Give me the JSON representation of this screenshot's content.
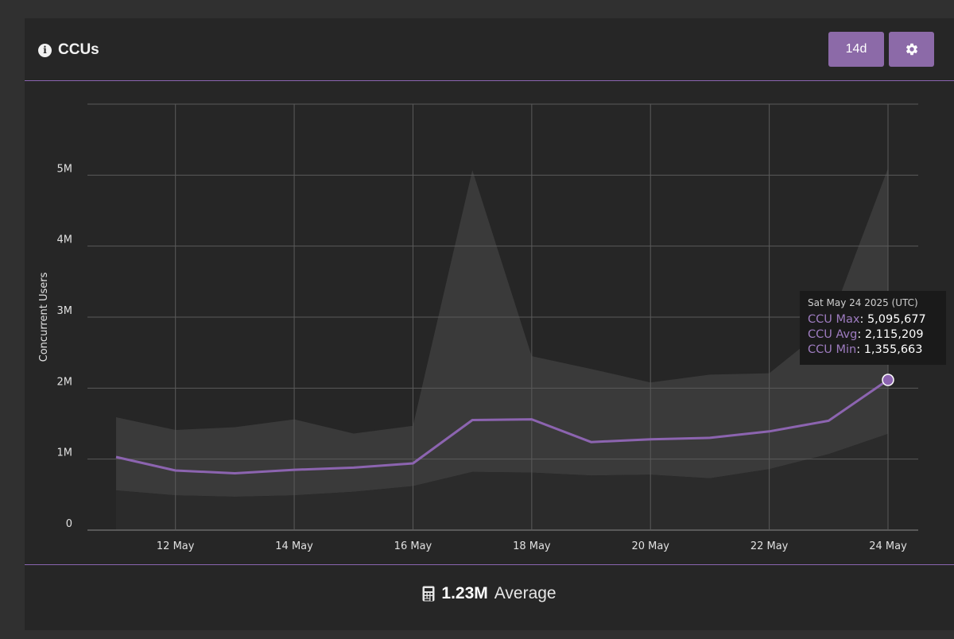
{
  "card": {
    "title": "CCUs",
    "range_button": "14d",
    "summary": {
      "value": "1.23M",
      "label": "Average"
    }
  },
  "colors": {
    "accent": "#8c6aa8",
    "line": "#8c64b0",
    "band": "#3a3a3a",
    "grid": "#5a5a5a",
    "background": "#262626"
  },
  "icons": {
    "title": "info-icon",
    "settings": "gear-icon",
    "summary": "calculator-icon"
  },
  "tooltip": {
    "date": "Sat May 24 2025 (UTC)",
    "rows": [
      {
        "label": "CCU Max",
        "value": "5,095,677"
      },
      {
        "label": "CCU Avg",
        "value": "2,115,209"
      },
      {
        "label": "CCU Min",
        "value": "1,355,663"
      }
    ]
  },
  "chart_data": {
    "type": "area",
    "ylabel": "Concurrent Users",
    "ylim": [
      0,
      6000000
    ],
    "yticks": [
      0,
      1000000,
      2000000,
      3000000,
      4000000,
      5000000
    ],
    "ytick_labels": [
      "0",
      "1M",
      "2M",
      "3M",
      "4M",
      "5M"
    ],
    "x": [
      "2025-05-11",
      "2025-05-12",
      "2025-05-13",
      "2025-05-14",
      "2025-05-15",
      "2025-05-16",
      "2025-05-17",
      "2025-05-18",
      "2025-05-19",
      "2025-05-20",
      "2025-05-21",
      "2025-05-22",
      "2025-05-23",
      "2025-05-24"
    ],
    "xticks": [
      "2025-05-12",
      "2025-05-14",
      "2025-05-16",
      "2025-05-18",
      "2025-05-20",
      "2025-05-22",
      "2025-05-24"
    ],
    "xtick_labels": [
      "12 May",
      "14 May",
      "16 May",
      "18 May",
      "20 May",
      "22 May",
      "24 May"
    ],
    "grid": true,
    "series": [
      {
        "name": "CCU Max",
        "values": [
          1590000,
          1410000,
          1450000,
          1560000,
          1360000,
          1470000,
          5070000,
          2450000,
          2270000,
          2080000,
          2190000,
          2210000,
          2880000,
          5095677
        ]
      },
      {
        "name": "CCU Avg",
        "values": [
          1030000,
          840000,
          800000,
          850000,
          880000,
          940000,
          1550000,
          1560000,
          1240000,
          1280000,
          1300000,
          1390000,
          1540000,
          2115209
        ]
      },
      {
        "name": "CCU Min",
        "values": [
          560000,
          490000,
          470000,
          490000,
          540000,
          620000,
          820000,
          810000,
          770000,
          780000,
          730000,
          860000,
          1070000,
          1355663
        ]
      }
    ],
    "highlight": {
      "x": "2025-05-24",
      "series": "CCU Avg"
    }
  }
}
